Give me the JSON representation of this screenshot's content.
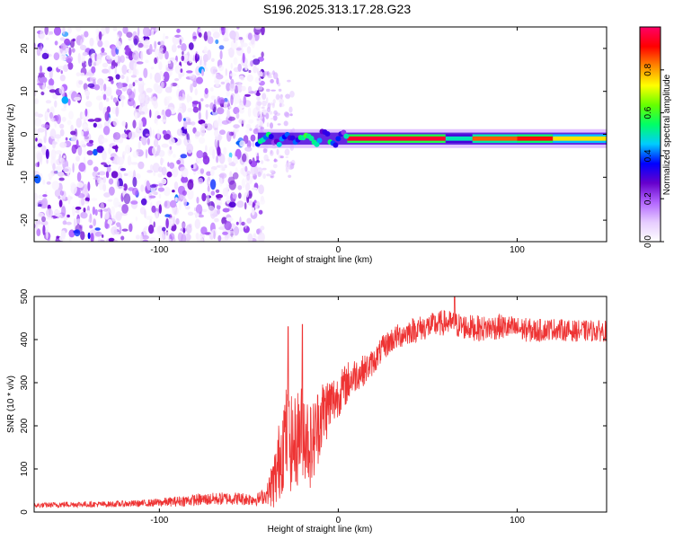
{
  "figure": {
    "title": "S196.2025.313.17.28.G23"
  },
  "chart_data": [
    {
      "type": "heatmap",
      "title": "S196.2025.313.17.28.G23",
      "xlabel": "Height of straight line (km)",
      "ylabel": "Frequency (Hz)",
      "xlim": [
        -170,
        150
      ],
      "ylim": [
        -25,
        25
      ],
      "x_ticks": [
        -100,
        0,
        100
      ],
      "y_ticks": [
        -20,
        -10,
        0,
        10,
        20
      ],
      "colorbar": {
        "label": "Normalized spectral amplitude",
        "range": [
          0,
          1
        ],
        "ticks": [
          0.0,
          0.2,
          0.4,
          0.6,
          0.8
        ],
        "colors": [
          "#ffffff",
          "#e6ccff",
          "#b366ff",
          "#6600cc",
          "#0000ff",
          "#00ccff",
          "#00ff66",
          "#66ff00",
          "#ffff00",
          "#ff8800",
          "#ff0000",
          "#ff0066"
        ]
      },
      "dominant_ridge": {
        "frequency_hz": -1,
        "x_start": -45,
        "x_end": 150,
        "peak_segments": [
          {
            "x_start": 5,
            "x_end": 60,
            "amplitude": 0.95
          },
          {
            "x_start": 60,
            "x_end": 75,
            "amplitude": 0.5
          },
          {
            "x_start": 75,
            "x_end": 100,
            "amplitude": 0.85
          },
          {
            "x_start": 100,
            "x_end": 120,
            "amplitude": 0.9
          },
          {
            "x_start": 120,
            "x_end": 150,
            "amplitude": 0.75
          }
        ]
      },
      "noise_region": {
        "x_start": -170,
        "x_end": -42,
        "amplitude_range": [
          0.02,
          0.3
        ]
      }
    },
    {
      "type": "line",
      "xlabel": "Height of straight line (km)",
      "ylabel": "SNR (10 * v/v)",
      "xlim": [
        -170,
        150
      ],
      "ylim": [
        0,
        500
      ],
      "x_ticks": [
        -100,
        0,
        100
      ],
      "y_ticks": [
        0,
        100,
        200,
        300,
        400,
        500
      ],
      "color": "#ee3333",
      "series": [
        {
          "x": [
            -170,
            -150,
            -130,
            -110,
            -100,
            -90,
            -80,
            -70,
            -60,
            -50,
            -45,
            -40,
            -35,
            -30,
            -25,
            -20,
            -15,
            -10,
            -5,
            0,
            5,
            10,
            15,
            20,
            25,
            30,
            40,
            50,
            60,
            70,
            80,
            90,
            100,
            110,
            120,
            130,
            140,
            150
          ],
          "y": [
            15,
            18,
            18,
            20,
            22,
            25,
            28,
            30,
            32,
            30,
            30,
            40,
            80,
            180,
            150,
            200,
            150,
            220,
            250,
            270,
            300,
            320,
            330,
            350,
            380,
            400,
            420,
            430,
            440,
            430,
            425,
            430,
            425,
            420,
            425,
            420,
            420,
            420
          ],
          "noise_amplitude": [
            6,
            7,
            7,
            8,
            10,
            12,
            14,
            15,
            15,
            15,
            15,
            20,
            80,
            120,
            110,
            120,
            100,
            90,
            70,
            50,
            50,
            40,
            35,
            30,
            30,
            30,
            30,
            30,
            30,
            30,
            30,
            30,
            28,
            28,
            25,
            25,
            25,
            25
          ]
        }
      ],
      "spikes": [
        {
          "x": -28,
          "y": 430
        },
        {
          "x": -20,
          "y": 435
        },
        {
          "x": 65,
          "y": 500
        }
      ]
    }
  ]
}
